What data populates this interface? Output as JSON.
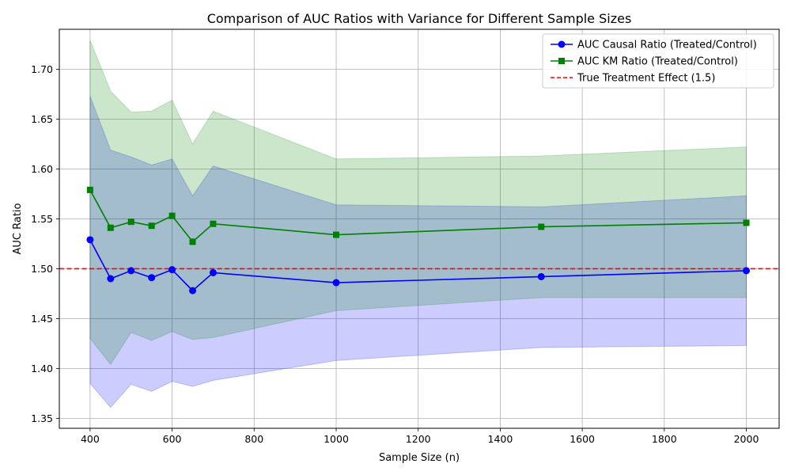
{
  "chart_data": {
    "type": "line",
    "title": "Comparison of AUC Ratios with Variance for Different Sample Sizes",
    "xlabel": "Sample Size (n)",
    "ylabel": "AUC Ratio",
    "xlim": [
      325,
      2080
    ],
    "ylim": [
      1.34,
      1.74
    ],
    "xticks": [
      400,
      600,
      800,
      1000,
      1200,
      1400,
      1600,
      1800,
      2000
    ],
    "yticks": [
      1.35,
      1.4,
      1.45,
      1.5,
      1.55,
      1.6,
      1.65,
      1.7
    ],
    "grid": true,
    "legend_position": "top-right",
    "x": [
      400,
      450,
      500,
      550,
      600,
      650,
      700,
      1000,
      1500,
      2000
    ],
    "series": [
      {
        "name": "AUC Causal Ratio (Treated/Control)",
        "color": "#0000ff",
        "marker": "circle",
        "values": [
          1.529,
          1.49,
          1.498,
          1.491,
          1.499,
          1.478,
          1.496,
          1.486,
          1.492,
          1.498
        ],
        "band_lower": [
          1.385,
          1.361,
          1.384,
          1.377,
          1.387,
          1.382,
          1.388,
          1.408,
          1.421,
          1.423
        ],
        "band_upper": [
          1.673,
          1.619,
          1.612,
          1.604,
          1.61,
          1.573,
          1.603,
          1.564,
          1.562,
          1.573
        ],
        "band_color": "#ccccff"
      },
      {
        "name": "AUC KM Ratio (Treated/Control)",
        "color": "#008000",
        "marker": "square",
        "values": [
          1.579,
          1.541,
          1.547,
          1.543,
          1.553,
          1.527,
          1.545,
          1.534,
          1.542,
          1.546
        ],
        "band_lower": [
          1.43,
          1.404,
          1.436,
          1.428,
          1.437,
          1.429,
          1.431,
          1.458,
          1.471,
          1.471
        ],
        "band_upper": [
          1.729,
          1.678,
          1.657,
          1.658,
          1.669,
          1.625,
          1.658,
          1.61,
          1.613,
          1.622
        ],
        "band_color": "#cce6cc"
      }
    ],
    "reference_line": {
      "name": "True Treatment Effect (1.5)",
      "y": 1.5,
      "color": "#ff0000"
    }
  }
}
